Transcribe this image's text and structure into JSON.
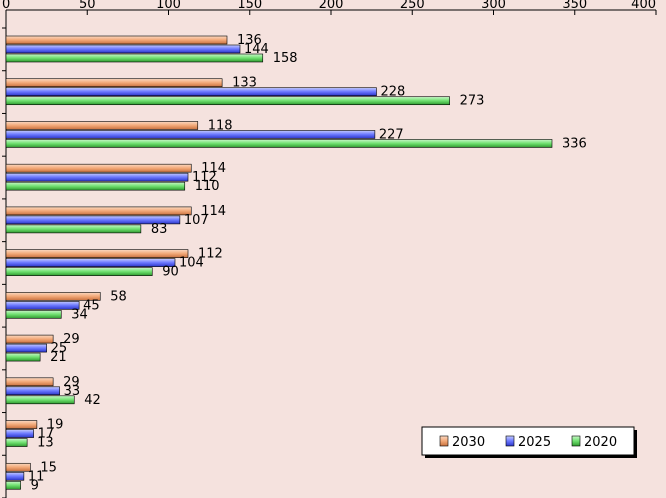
{
  "chart_data": {
    "type": "bar",
    "orientation": "horizontal",
    "x_ticks": [
      "0",
      "50",
      "100",
      "150",
      "200",
      "250",
      "300",
      "350",
      "400"
    ],
    "xlim": [
      0,
      400
    ],
    "grid": false,
    "legend_position": "bottom-right",
    "series": [
      {
        "name": "2030",
        "color": "#f2a877",
        "values": [
          136,
          133,
          118,
          114,
          114,
          112,
          58,
          29,
          29,
          19,
          15
        ]
      },
      {
        "name": "2025",
        "color": "#6b78ff",
        "values": [
          144,
          228,
          227,
          112,
          107,
          104,
          45,
          25,
          33,
          17,
          11
        ]
      },
      {
        "name": "2020",
        "color": "#6fe06f",
        "values": [
          158,
          273,
          336,
          110,
          83,
          90,
          34,
          21,
          42,
          13,
          9
        ]
      }
    ]
  }
}
